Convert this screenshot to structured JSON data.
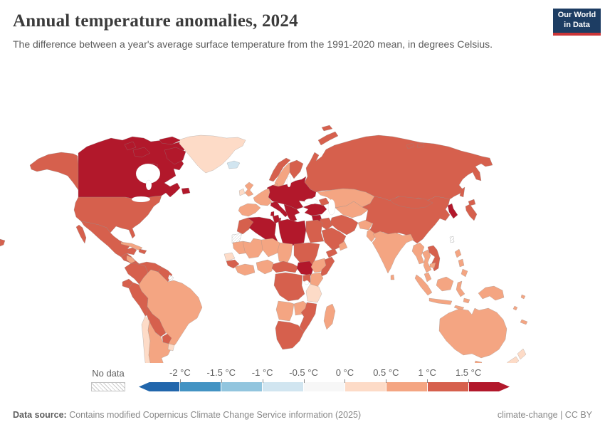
{
  "header": {
    "title": "Annual temperature anomalies, 2024",
    "subtitle": "The difference between a year's average surface temperature from the 1991-2020 mean, in degrees Celsius.",
    "logo": {
      "line1": "Our World",
      "line2": "in Data",
      "bg_color": "#1d3d63",
      "stripe_color": "#cb3537"
    }
  },
  "footer": {
    "source_label": "Data source:",
    "source_text": " Contains modified Copernicus Climate Change Service information (2025)",
    "attribution": "climate-change | CC BY"
  },
  "legend": {
    "no_data_label": "No data",
    "tick_labels": [
      "-2 °C",
      "-1.5 °C",
      "-1 °C",
      "-0.5 °C",
      "0 °C",
      "0.5 °C",
      "1 °C",
      "1.5 °C"
    ]
  },
  "chart_data": {
    "type": "choropleth_map",
    "title": "Annual temperature anomalies, 2024",
    "unit": "°C",
    "projection": "world",
    "bins": [
      {
        "range": "< -2",
        "color": "#2166ac"
      },
      {
        "range": "-2 to -1.5",
        "color": "#4393c3"
      },
      {
        "range": "-1.5 to -1",
        "color": "#92c5de"
      },
      {
        "range": "-1 to -0.5",
        "color": "#d1e5f0"
      },
      {
        "range": "-0.5 to 0",
        "color": "#f7f7f7"
      },
      {
        "range": "0 to 0.5",
        "color": "#fddbc7"
      },
      {
        "range": "0.5 to 1",
        "color": "#f4a582"
      },
      {
        "range": "1 to 1.5",
        "color": "#d6604d"
      },
      {
        "range": "> 1.5",
        "color": "#b2182b"
      }
    ],
    "no_data_band": -1,
    "regions": [
      {
        "id": "canada",
        "name": "Canada",
        "band": 8
      },
      {
        "id": "greenland",
        "name": "Greenland",
        "band": 5
      },
      {
        "id": "iceland",
        "name": "Iceland",
        "band": 3
      },
      {
        "id": "usa",
        "name": "United States",
        "band": 7
      },
      {
        "id": "mexico",
        "name": "Mexico",
        "band": 7
      },
      {
        "id": "central-america",
        "name": "Central America",
        "band": 7
      },
      {
        "id": "honduras-nicaragua",
        "name": "Honduras & Nicaragua",
        "band": 6
      },
      {
        "id": "cuba",
        "name": "Cuba",
        "band": 6
      },
      {
        "id": "hispaniola",
        "name": "Hispaniola",
        "band": 7
      },
      {
        "id": "colombia",
        "name": "Colombia",
        "band": 7
      },
      {
        "id": "venezuela",
        "name": "Venezuela",
        "band": 7
      },
      {
        "id": "guyanas",
        "name": "Guyana & Suriname",
        "band": 7
      },
      {
        "id": "french-guiana",
        "name": "French Guiana",
        "band": -1
      },
      {
        "id": "ecuador",
        "name": "Ecuador",
        "band": 7
      },
      {
        "id": "peru",
        "name": "Peru",
        "band": 7
      },
      {
        "id": "brazil",
        "name": "Brazil",
        "band": 6
      },
      {
        "id": "bolivia",
        "name": "Bolivia",
        "band": 7
      },
      {
        "id": "paraguay",
        "name": "Paraguay",
        "band": 7
      },
      {
        "id": "chile",
        "name": "Chile",
        "band": 5
      },
      {
        "id": "argentina",
        "name": "Argentina",
        "band": 6
      },
      {
        "id": "uruguay",
        "name": "Uruguay",
        "band": 5
      },
      {
        "id": "falkland",
        "name": "Falkland Islands",
        "band": 6
      },
      {
        "id": "uk",
        "name": "United Kingdom",
        "band": 6
      },
      {
        "id": "ireland",
        "name": "Ireland",
        "band": 5
      },
      {
        "id": "norway",
        "name": "Norway",
        "band": 7
      },
      {
        "id": "sweden",
        "name": "Sweden",
        "band": 6
      },
      {
        "id": "finland",
        "name": "Finland",
        "band": 7
      },
      {
        "id": "denmark",
        "name": "Denmark",
        "band": 6
      },
      {
        "id": "france",
        "name": "France",
        "band": 6
      },
      {
        "id": "iberia",
        "name": "Spain & Portugal",
        "band": 6
      },
      {
        "id": "central-eastern-europe",
        "name": "Central & Eastern Europe",
        "band": 8
      },
      {
        "id": "italy",
        "name": "Italy",
        "band": 8
      },
      {
        "id": "balkans",
        "name": "Balkans & Greece",
        "band": 8
      },
      {
        "id": "turkey",
        "name": "Turkey",
        "band": 8
      },
      {
        "id": "levant",
        "name": "Syria & Levant",
        "band": 8
      },
      {
        "id": "jordan-israel",
        "name": "Jordan & Israel",
        "band": 7
      },
      {
        "id": "russia",
        "name": "Russia",
        "band": 7
      },
      {
        "id": "kazakhstan",
        "name": "Kazakhstan",
        "band": 6
      },
      {
        "id": "central-asia",
        "name": "Central Asia",
        "band": 6
      },
      {
        "id": "caucasus",
        "name": "Caucasus",
        "band": 7
      },
      {
        "id": "iran",
        "name": "Iran",
        "band": 7
      },
      {
        "id": "iraq",
        "name": "Iraq",
        "band": 7
      },
      {
        "id": "saudi",
        "name": "Saudi Arabia",
        "band": 7
      },
      {
        "id": "yemen",
        "name": "Yemen",
        "band": 7
      },
      {
        "id": "oman",
        "name": "Oman",
        "band": 6
      },
      {
        "id": "afghanistan",
        "name": "Afghanistan",
        "band": 6
      },
      {
        "id": "pakistan",
        "name": "Pakistan",
        "band": 6
      },
      {
        "id": "india",
        "name": "India",
        "band": 6
      },
      {
        "id": "sri-lanka",
        "name": "Sri Lanka",
        "band": 6
      },
      {
        "id": "china",
        "name": "China",
        "band": 7
      },
      {
        "id": "mongolia",
        "name": "Mongolia",
        "band": 7
      },
      {
        "id": "korea",
        "name": "Korea",
        "band": 8
      },
      {
        "id": "japan",
        "name": "Japan",
        "band": 7
      },
      {
        "id": "taiwan",
        "name": "Taiwan",
        "band": -1
      },
      {
        "id": "myanmar",
        "name": "Myanmar",
        "band": 6
      },
      {
        "id": "thailand",
        "name": "Thailand",
        "band": 6
      },
      {
        "id": "vietnam-laos",
        "name": "Vietnam & Laos",
        "band": 7
      },
      {
        "id": "cambodia",
        "name": "Cambodia",
        "band": 6
      },
      {
        "id": "malaysia",
        "name": "Malaysia",
        "band": 6
      },
      {
        "id": "indonesia",
        "name": "Indonesia",
        "band": 6
      },
      {
        "id": "philippines",
        "name": "Philippines",
        "band": 6
      },
      {
        "id": "new-guinea",
        "name": "Papua New Guinea",
        "band": 6
      },
      {
        "id": "australia",
        "name": "Australia",
        "band": 6
      },
      {
        "id": "new-zealand",
        "name": "New Zealand",
        "band": 5
      },
      {
        "id": "pacific-islands",
        "name": "Pacific Islands",
        "band": 6
      },
      {
        "id": "morocco",
        "name": "Morocco",
        "band": 7
      },
      {
        "id": "western-sahara",
        "name": "Western Sahara",
        "band": -1
      },
      {
        "id": "algeria",
        "name": "Algeria",
        "band": 8
      },
      {
        "id": "tunisia",
        "name": "Tunisia",
        "band": 8
      },
      {
        "id": "libya",
        "name": "Libya",
        "band": 8
      },
      {
        "id": "egypt",
        "name": "Egypt",
        "band": 7
      },
      {
        "id": "mauritania",
        "name": "Mauritania",
        "band": 6
      },
      {
        "id": "mali",
        "name": "Mali",
        "band": 6
      },
      {
        "id": "niger",
        "name": "Niger",
        "band": 6
      },
      {
        "id": "chad",
        "name": "Chad",
        "band": 6
      },
      {
        "id": "sudan",
        "name": "Sudan",
        "band": 7
      },
      {
        "id": "senegal",
        "name": "Senegal",
        "band": 5
      },
      {
        "id": "guinea",
        "name": "Guinea",
        "band": 7
      },
      {
        "id": "west-africa-coast",
        "name": "Ghana & Ivory Coast",
        "band": 6
      },
      {
        "id": "nigeria",
        "name": "Nigeria",
        "band": 6
      },
      {
        "id": "cameroon-car",
        "name": "Cameroon & Central African Rep.",
        "band": 7
      },
      {
        "id": "south-sudan",
        "name": "South Sudan",
        "band": 8
      },
      {
        "id": "ethiopia",
        "name": "Ethiopia",
        "band": 6
      },
      {
        "id": "somalia",
        "name": "Somalia",
        "band": 7
      },
      {
        "id": "kenya",
        "name": "Kenya",
        "band": 6
      },
      {
        "id": "uganda",
        "name": "Uganda",
        "band": 7
      },
      {
        "id": "drc",
        "name": "DR Congo",
        "band": 7
      },
      {
        "id": "tanzania",
        "name": "Tanzania",
        "band": 5
      },
      {
        "id": "angola",
        "name": "Angola",
        "band": 6
      },
      {
        "id": "zambia",
        "name": "Zambia",
        "band": 6
      },
      {
        "id": "mozambique-zimbabwe",
        "name": "Mozambique & Zimbabwe",
        "band": 7
      },
      {
        "id": "southern-africa",
        "name": "South Africa, Namibia & Botswana",
        "band": 7
      },
      {
        "id": "madagascar",
        "name": "Madagascar",
        "band": 6
      },
      {
        "id": "kerguelen",
        "name": "French Southern Territories",
        "band": -1
      },
      {
        "id": "aleutian-fragment",
        "name": "Aleutian Islands",
        "band": 7
      }
    ]
  }
}
